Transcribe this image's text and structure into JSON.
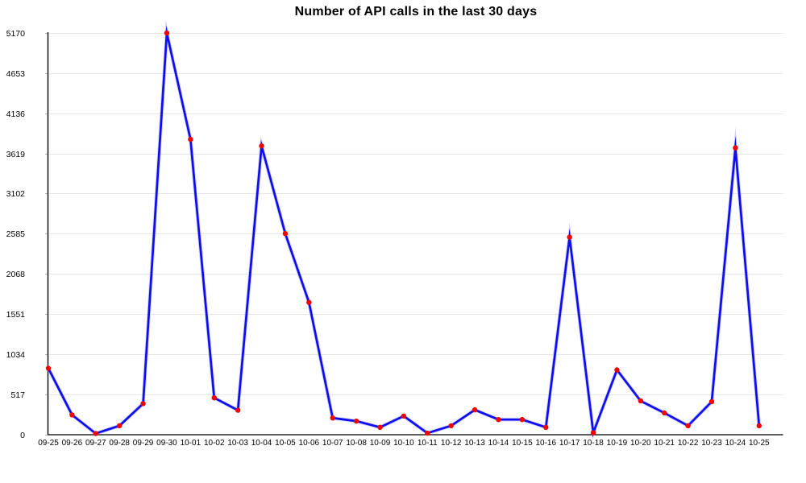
{
  "chart_data": {
    "type": "line",
    "title": "Number of API calls in the last 30 days",
    "xlabel": "",
    "ylabel": "",
    "x": [
      "09-25",
      "09-26",
      "09-27",
      "09-28",
      "09-29",
      "09-30",
      "10-01",
      "10-02",
      "10-03",
      "10-04",
      "10-05",
      "10-06",
      "10-07",
      "10-08",
      "10-09",
      "10-10",
      "10-11",
      "10-12",
      "10-13",
      "10-14",
      "10-15",
      "10-16",
      "10-17",
      "10-18",
      "10-19",
      "10-20",
      "10-21",
      "10-22",
      "10-23",
      "10-24",
      "10-25"
    ],
    "series": [
      {
        "name": "API calls",
        "values": [
          850,
          250,
          10,
          110,
          395,
          5170,
          3800,
          470,
          310,
          3715,
          2585,
          1700,
          210,
          170,
          90,
          235,
          15,
          110,
          315,
          190,
          190,
          90,
          2540,
          20,
          830,
          430,
          275,
          110,
          420,
          3690,
          110
        ]
      }
    ],
    "ylim": [
      0,
      5170
    ],
    "yticks": [
      0,
      517,
      1034,
      1551,
      2068,
      2585,
      3102,
      3619,
      4136,
      4653,
      5170
    ],
    "grid": "horizontal",
    "legend": "none",
    "colors": {
      "line": "#0d0df0",
      "line_glow": "#9a9af2",
      "point": "#f40000",
      "gridline": "#e6e6e6",
      "tick_stub": "#b3b3b3",
      "axis": "#000000",
      "text": "#000000"
    }
  }
}
